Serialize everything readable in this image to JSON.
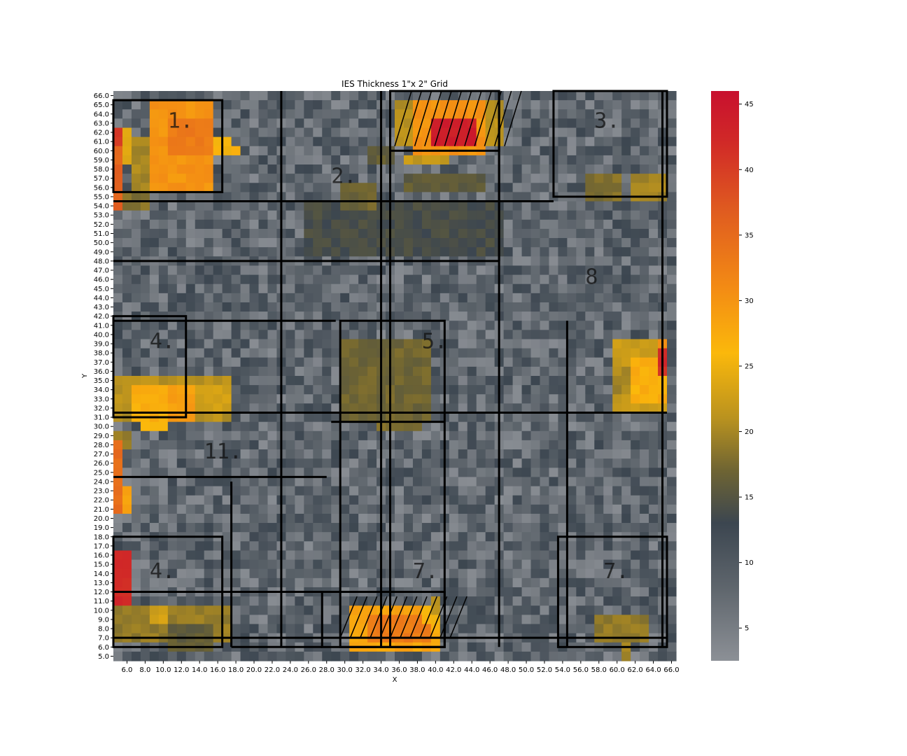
{
  "chart_data": {
    "type": "heatmap",
    "title": "IES Thickness 1\"x 2\" Grid",
    "xlabel": "X",
    "ylabel": "Y",
    "x_range": [
      5.0,
      66.0
    ],
    "x_step": 1,
    "y_range": [
      5.0,
      66.0
    ],
    "y_step": 1,
    "x_ticks": [
      "6.0",
      "8.0",
      "10.0",
      "12.0",
      "14.0",
      "16.0",
      "18.0",
      "20.0",
      "22.0",
      "24.0",
      "26.0",
      "28.0",
      "30.0",
      "32.0",
      "34.0",
      "36.0",
      "38.0",
      "40.0",
      "42.0",
      "44.0",
      "46.0",
      "48.0",
      "50.0",
      "52.0",
      "54.0",
      "56.0",
      "58.0",
      "60.0",
      "62.0",
      "64.0",
      "66.0"
    ],
    "y_ticks": [
      "66.0",
      "65.0",
      "64.0",
      "63.0",
      "62.0",
      "61.0",
      "60.0",
      "59.0",
      "58.0",
      "57.0",
      "56.0",
      "55.0",
      "54.0",
      "53.0",
      "52.0",
      "51.0",
      "50.0",
      "49.0",
      "48.0",
      "47.0",
      "46.0",
      "45.0",
      "44.0",
      "43.0",
      "42.0",
      "41.0",
      "40.0",
      "39.0",
      "38.0",
      "37.0",
      "36.0",
      "35.0",
      "34.0",
      "33.0",
      "32.0",
      "31.0",
      "30.0",
      "29.0",
      "28.0",
      "27.0",
      "26.0",
      "25.0",
      "24.0",
      "23.0",
      "22.0",
      "21.0",
      "20.0",
      "19.0",
      "18.0",
      "17.0",
      "16.0",
      "15.0",
      "14.0",
      "13.0",
      "12.0",
      "11.0",
      "10.0",
      "9.0",
      "8.0",
      "7.0",
      "6.0",
      "5.0"
    ],
    "colorbar": {
      "min": 2.5,
      "max": 46,
      "ticks": [
        "5",
        "10",
        "15",
        "20",
        "25",
        "30",
        "35",
        "40",
        "45"
      ],
      "tick_values": [
        5,
        10,
        15,
        20,
        25,
        30,
        35,
        40,
        45
      ],
      "stops": [
        {
          "v": 2.5,
          "c": "#8c9096"
        },
        {
          "v": 8,
          "c": "#5f666d"
        },
        {
          "v": 13,
          "c": "#3c4650"
        },
        {
          "v": 17,
          "c": "#6e6433"
        },
        {
          "v": 21,
          "c": "#b9921f"
        },
        {
          "v": 26,
          "c": "#fbb80b"
        },
        {
          "v": 31,
          "c": "#f38b14"
        },
        {
          "v": 37,
          "c": "#df5a20"
        },
        {
          "v": 42,
          "c": "#d12a27"
        },
        {
          "v": 46,
          "c": "#c8102e"
        }
      ]
    },
    "base_value": 9,
    "high_regions": [
      {
        "x": [
          5,
          6
        ],
        "y": [
          54,
          63
        ],
        "v": 36
      },
      {
        "x": [
          5,
          6
        ],
        "y": [
          61,
          63
        ],
        "v": 40
      },
      {
        "x": [
          6,
          7
        ],
        "y": [
          59,
          63
        ],
        "v": 24
      },
      {
        "x": [
          7,
          9
        ],
        "y": [
          56,
          62
        ],
        "v": 20
      },
      {
        "x": [
          9,
          16
        ],
        "y": [
          56,
          66
        ],
        "v": 30
      },
      {
        "x": [
          11,
          16
        ],
        "y": [
          60,
          64
        ],
        "v": 33
      },
      {
        "x": [
          16,
          18
        ],
        "y": [
          60,
          62
        ],
        "v": 26
      },
      {
        "x": [
          18,
          19
        ],
        "y": [
          60,
          61
        ],
        "v": 27
      },
      {
        "x": [
          6,
          9
        ],
        "y": [
          54,
          56
        ],
        "v": 18
      },
      {
        "x": [
          36,
          48
        ],
        "y": [
          61,
          66
        ],
        "v": 21
      },
      {
        "x": [
          38,
          46
        ],
        "y": [
          60,
          66
        ],
        "v": 30
      },
      {
        "x": [
          40,
          45
        ],
        "y": [
          61,
          64
        ],
        "v": 44
      },
      {
        "x": [
          37,
          42
        ],
        "y": [
          59,
          60
        ],
        "v": 22
      },
      {
        "x": [
          33,
          36
        ],
        "y": [
          59,
          61
        ],
        "v": 16
      },
      {
        "x": [
          26,
          48
        ],
        "y": [
          49,
          55
        ],
        "v": 14
      },
      {
        "x": [
          30,
          34
        ],
        "y": [
          54,
          57
        ],
        "v": 17
      },
      {
        "x": [
          37,
          46
        ],
        "y": [
          56,
          58
        ],
        "v": 16
      },
      {
        "x": [
          57,
          61
        ],
        "y": [
          55,
          58
        ],
        "v": 18
      },
      {
        "x": [
          62,
          66
        ],
        "y": [
          55,
          58
        ],
        "v": 20
      },
      {
        "x": [
          30,
          40
        ],
        "y": [
          31,
          40
        ],
        "v": 17
      },
      {
        "x": [
          34,
          39
        ],
        "y": [
          30,
          31
        ],
        "v": 18
      },
      {
        "x": [
          5,
          18
        ],
        "y": [
          31,
          36
        ],
        "v": 21
      },
      {
        "x": [
          7,
          11
        ],
        "y": [
          31,
          35
        ],
        "v": 27
      },
      {
        "x": [
          11,
          14
        ],
        "y": [
          31,
          35
        ],
        "v": 29
      },
      {
        "x": [
          14,
          18
        ],
        "y": [
          32,
          35
        ],
        "v": 23
      },
      {
        "x": [
          8,
          11
        ],
        "y": [
          30,
          31
        ],
        "v": 26
      },
      {
        "x": [
          5,
          7
        ],
        "y": [
          28,
          30
        ],
        "v": 19
      },
      {
        "x": [
          60,
          66
        ],
        "y": [
          32,
          40
        ],
        "v": 22
      },
      {
        "x": [
          62,
          66
        ],
        "y": [
          33,
          38
        ],
        "v": 27
      },
      {
        "x": [
          65,
          66
        ],
        "y": [
          36,
          39
        ],
        "v": 42
      },
      {
        "x": [
          65,
          66
        ],
        "y": [
          39,
          40
        ],
        "v": 31
      },
      {
        "x": [
          60,
          62
        ],
        "y": [
          34,
          37
        ],
        "v": 20
      },
      {
        "x": [
          5,
          6
        ],
        "y": [
          21,
          29
        ],
        "v": 35
      },
      {
        "x": [
          6,
          7
        ],
        "y": [
          21,
          24
        ],
        "v": 28
      },
      {
        "x": [
          5,
          7
        ],
        "y": [
          11,
          17
        ],
        "v": 42
      },
      {
        "x": [
          5,
          18
        ],
        "y": [
          7,
          11
        ],
        "v": 19
      },
      {
        "x": [
          9,
          11
        ],
        "y": [
          9,
          11
        ],
        "v": 23
      },
      {
        "x": [
          11,
          16
        ],
        "y": [
          6,
          9
        ],
        "v": 16
      },
      {
        "x": [
          31,
          41
        ],
        "y": [
          6,
          11
        ],
        "v": 28
      },
      {
        "x": [
          33,
          40
        ],
        "y": [
          7,
          10
        ],
        "v": 33
      },
      {
        "x": [
          39,
          41
        ],
        "y": [
          9,
          11
        ],
        "v": 26
      },
      {
        "x": [
          40,
          41
        ],
        "y": [
          10,
          12
        ],
        "v": 21
      },
      {
        "x": [
          58,
          64
        ],
        "y": [
          7,
          10
        ],
        "v": 19
      },
      {
        "x": [
          61,
          62
        ],
        "y": [
          5,
          7
        ],
        "v": 20
      }
    ],
    "region_labels": [
      "1.",
      "2.",
      "3.",
      "4.",
      "5.",
      "4.",
      "11.",
      "7.",
      "7.",
      "8"
    ]
  }
}
